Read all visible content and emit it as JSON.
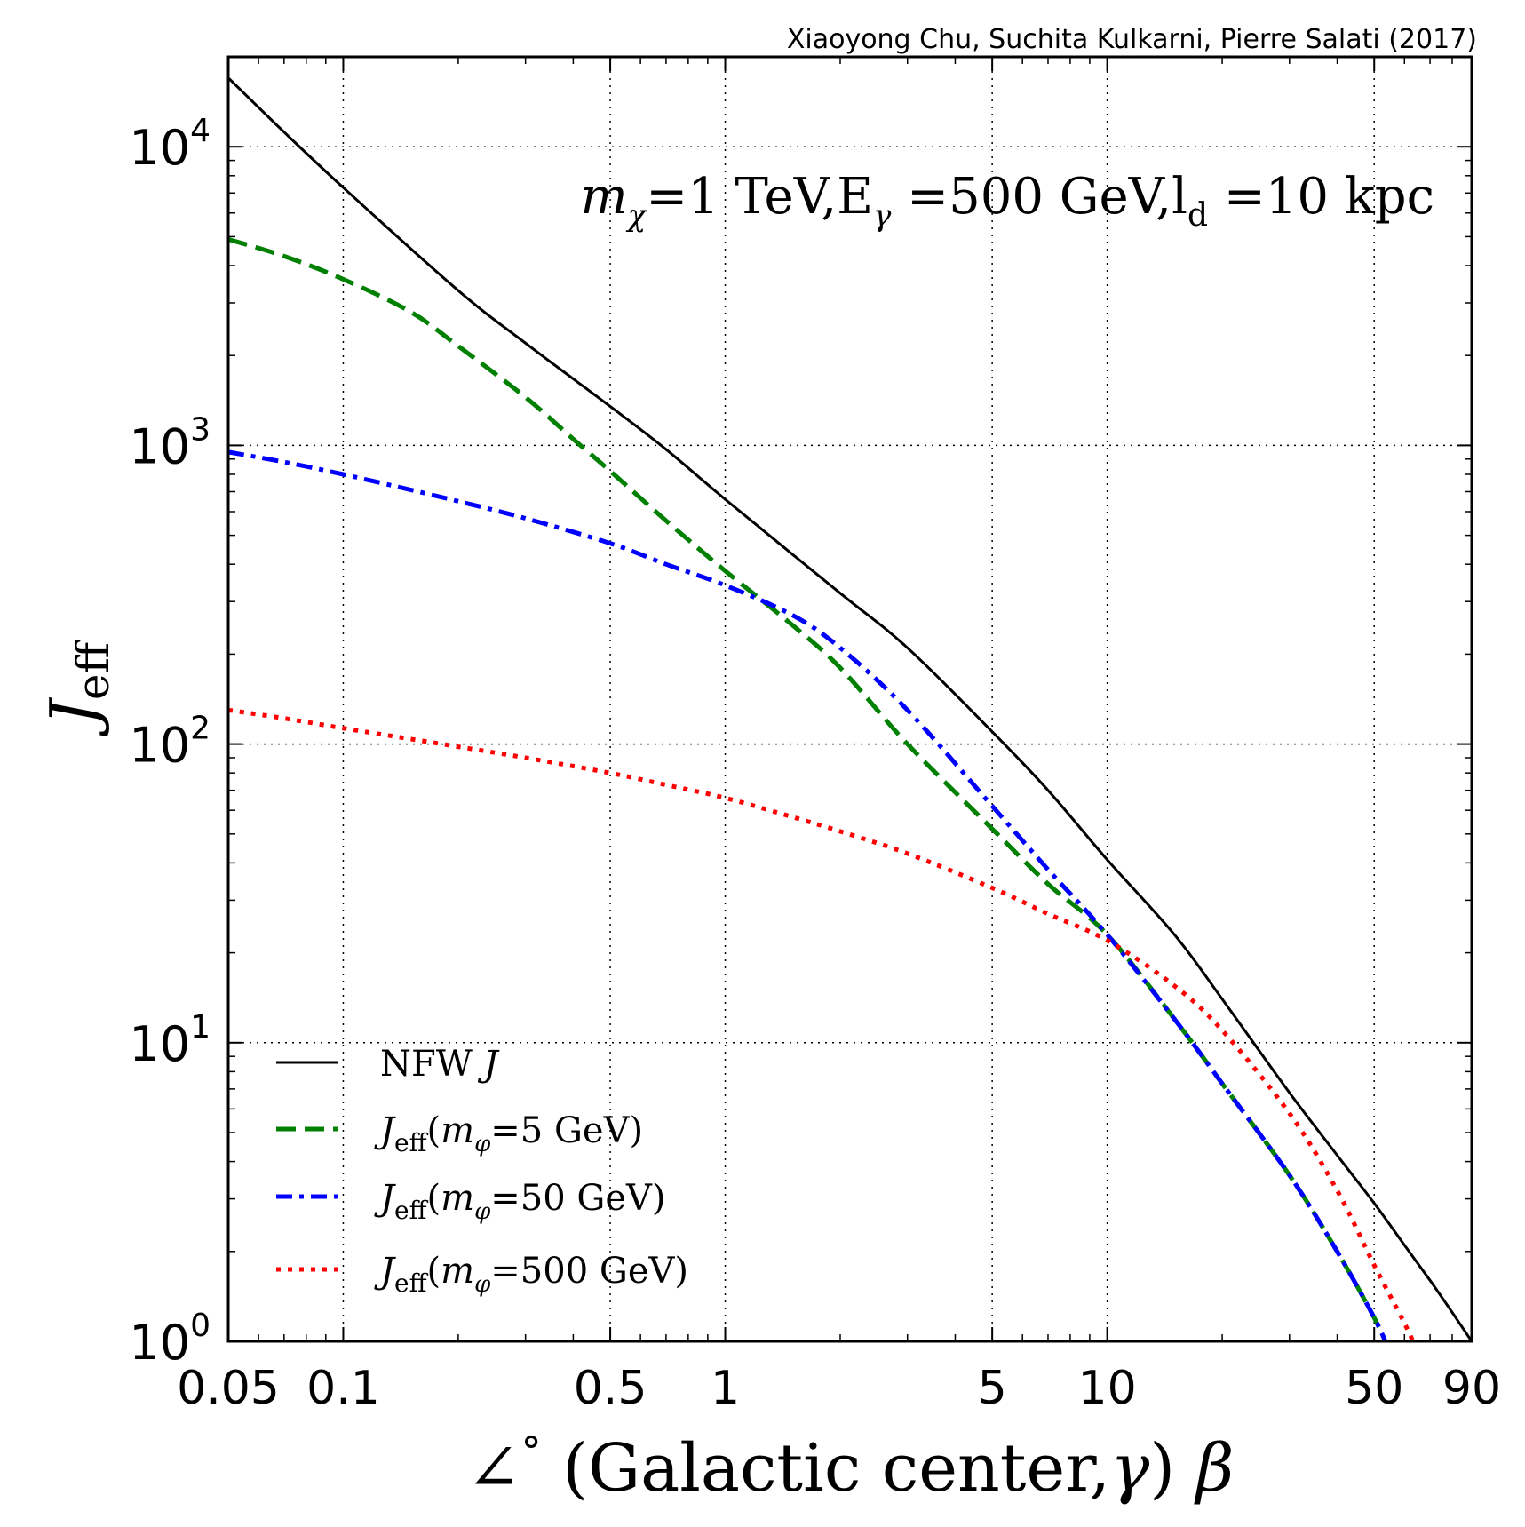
{
  "credit": "Xiaoyong Chu, Suchita Kulkarni, Pierre Salati (2017)",
  "chart_data": {
    "type": "line",
    "xscale": "log",
    "yscale": "log",
    "xlim": [
      0.05,
      90
    ],
    "ylim": [
      1,
      20000
    ],
    "grid": true,
    "xlabel": {
      "angle_symbol": "∠",
      "degree": "°",
      "text": " (Galactic center,",
      "gamma": "γ",
      "close": ")",
      "beta": "β"
    },
    "ylabel": {
      "main": "J",
      "sub": "eff"
    },
    "x_ticks": [
      {
        "value": 0.05,
        "label": "0.05"
      },
      {
        "value": 0.1,
        "label": "0.1"
      },
      {
        "value": 0.5,
        "label": "0.5"
      },
      {
        "value": 1,
        "label": "1"
      },
      {
        "value": 5,
        "label": "5"
      },
      {
        "value": 10,
        "label": "10"
      },
      {
        "value": 50,
        "label": "50"
      },
      {
        "value": 90,
        "label": "90"
      }
    ],
    "y_ticks": [
      {
        "value": 1,
        "base": "10",
        "exp": "0"
      },
      {
        "value": 10,
        "base": "10",
        "exp": "1"
      },
      {
        "value": 100,
        "base": "10",
        "exp": "2"
      },
      {
        "value": 1000,
        "base": "10",
        "exp": "3"
      },
      {
        "value": 10000,
        "base": "10",
        "exp": "4"
      }
    ],
    "annotation": {
      "m": "m",
      "chi": "χ",
      "part1": "=1 TeV,E",
      "gamma": "γ",
      "part2": " =500 GeV,l",
      "d": "d",
      "part3": " =10 kpc"
    },
    "legend_position": "lower-left",
    "series": [
      {
        "id": "nfw",
        "name": "NFW J",
        "legend": {
          "text": "NFW ",
          "italic": "J"
        },
        "color": "#000000",
        "style": "solid",
        "x": [
          0.05,
          0.07,
          0.1,
          0.2,
          0.3,
          0.5,
          0.7,
          1,
          2,
          3,
          5,
          7,
          10,
          15,
          20,
          30,
          40,
          50,
          60,
          70,
          80,
          90
        ],
        "y": [
          17000,
          11200,
          7300,
          3300,
          2200,
          1350,
          970,
          660,
          320,
          210,
          110,
          70,
          41,
          23,
          14,
          6.8,
          4.2,
          2.9,
          2.1,
          1.6,
          1.25,
          1.0
        ]
      },
      {
        "id": "j5",
        "name": "J_eff(m_phi=5 GeV)",
        "legend": {
          "italic": "J",
          "sub": "eff",
          "open": "(",
          "m": "m",
          "phi": "φ",
          "rest": "=5 GeV)"
        },
        "color": "#008000",
        "style": "dashed",
        "x": [
          0.05,
          0.07,
          0.1,
          0.15,
          0.2,
          0.3,
          0.4,
          0.5,
          0.7,
          1,
          1.5,
          2,
          3,
          5,
          7,
          10,
          15,
          20,
          30,
          40,
          50,
          55
        ],
        "y": [
          4900,
          4300,
          3600,
          2800,
          2150,
          1450,
          1050,
          820,
          560,
          380,
          250,
          180,
          100,
          52,
          34,
          23,
          12,
          7.3,
          3.6,
          2.0,
          1.2,
          0.92
        ]
      },
      {
        "id": "j50",
        "name": "J_eff(m_phi=50 GeV)",
        "legend": {
          "italic": "J",
          "sub": "eff",
          "open": "(",
          "m": "m",
          "phi": "φ",
          "rest": "=50 GeV)"
        },
        "color": "#0000ff",
        "style": "dashdot",
        "x": [
          0.05,
          0.07,
          0.1,
          0.15,
          0.2,
          0.3,
          0.5,
          0.7,
          1,
          1.5,
          2,
          3,
          5,
          7,
          10,
          15,
          20,
          30,
          40,
          50,
          55
        ],
        "y": [
          950,
          880,
          800,
          710,
          650,
          570,
          470,
          400,
          340,
          270,
          210,
          130,
          62,
          38,
          23,
          12,
          7.3,
          3.6,
          2.0,
          1.2,
          0.92
        ]
      },
      {
        "id": "j500",
        "name": "J_eff(m_phi=500 GeV)",
        "legend": {
          "italic": "J",
          "sub": "eff",
          "open": "(",
          "m": "m",
          "phi": "φ",
          "rest": "=500 GeV)"
        },
        "color": "#ff0000",
        "style": "dotted",
        "x": [
          0.05,
          0.07,
          0.1,
          0.15,
          0.2,
          0.3,
          0.5,
          0.7,
          1,
          1.5,
          2,
          3,
          5,
          7,
          10,
          15,
          20,
          30,
          40,
          50,
          60,
          65
        ],
        "y": [
          130,
          122,
          113,
          104,
          98,
          90,
          80,
          73,
          66,
          57,
          51,
          43,
          33,
          27,
          22,
          15.5,
          11,
          5.8,
          3.2,
          1.8,
          1.15,
          0.92
        ]
      }
    ]
  }
}
